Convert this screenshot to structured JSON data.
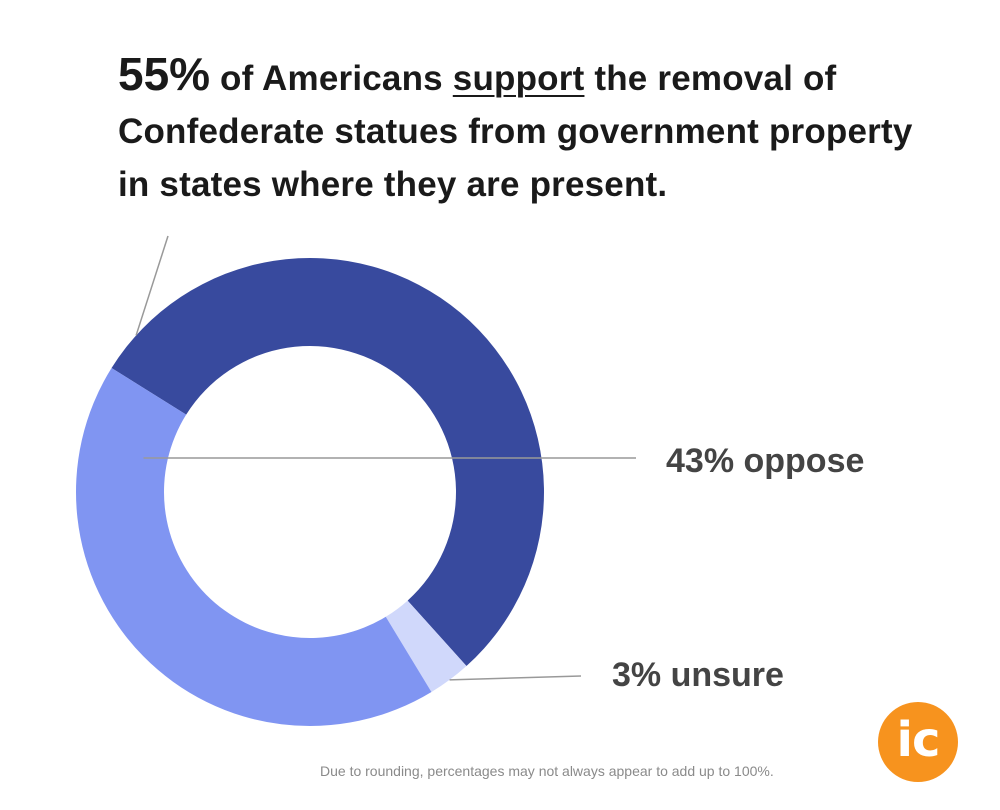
{
  "headline": {
    "percent": "55%",
    "part1": " of Americans ",
    "emphasis": "support",
    "part2": " the removal of Confederate statues from government property in states where they are present."
  },
  "chart_data": {
    "type": "pie",
    "variant": "donut",
    "title": "55% of Americans support the removal of Confederate statues from government property in states where they are present.",
    "slices": [
      {
        "name": "support",
        "value": 55,
        "label": "",
        "color": "#384a9e"
      },
      {
        "name": "oppose",
        "value": 43,
        "label": "43% oppose",
        "color": "#8095f2"
      },
      {
        "name": "unsure",
        "value": 3,
        "label": "3% unsure",
        "color": "#d0d8fb"
      }
    ]
  },
  "footnote": "Due to rounding, percentages may not always appear to add up to 100%.",
  "logo": {
    "text": "ic",
    "color": "#f7931e"
  }
}
